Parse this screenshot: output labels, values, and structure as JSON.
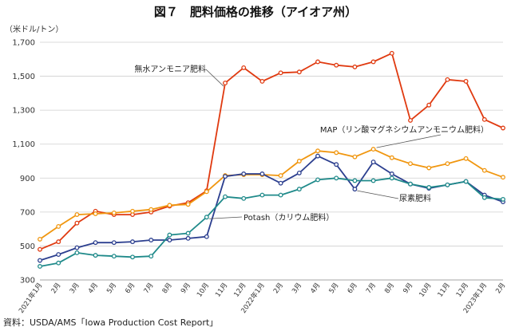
{
  "chart_data": {
    "type": "line",
    "title": "図７　肥料価格の推移（アイオア州）",
    "ylabel": "（米ドル/トン）",
    "ylim": [
      300,
      1700
    ],
    "yticks": [
      "300",
      "500",
      "700",
      "900",
      "1,100",
      "1,300",
      "1,500",
      "1,700"
    ],
    "ytick_values": [
      300,
      500,
      700,
      900,
      1100,
      1300,
      1500,
      1700
    ],
    "grid": true,
    "source": "資料：USDA/AMS「Iowa Production Cost Report」",
    "x": [
      "2021年1月",
      "2月",
      "3月",
      "4月",
      "5月",
      "6月",
      "7月",
      "8月",
      "9月",
      "10月",
      "11月",
      "12月",
      "2022年1月",
      "2月",
      "3月",
      "4月",
      "5月",
      "6月",
      "7月",
      "8月",
      "9月",
      "10月",
      "11月",
      "12月",
      "2023年1月",
      "2月"
    ],
    "series": [
      {
        "name": "無水アンモニア肥料",
        "color": "#e03a10",
        "values": [
          480,
          525,
          635,
          705,
          685,
          685,
          700,
          735,
          755,
          825,
          1460,
          1550,
          1470,
          1520,
          1525,
          1585,
          1565,
          1555,
          1585,
          1635,
          1240,
          1330,
          1480,
          1470,
          1245,
          1195
        ]
      },
      {
        "name": "MAP（リン酸マグネシウムアンモニウム肥料）",
        "color": "#f0960f",
        "values": [
          540,
          615,
          685,
          690,
          695,
          705,
          715,
          740,
          745,
          820,
          915,
          920,
          920,
          915,
          1000,
          1060,
          1050,
          1025,
          1070,
          1020,
          985,
          960,
          985,
          1015,
          945,
          905
        ]
      },
      {
        "name": "尿素肥料",
        "color": "#2c3f8f",
        "values": [
          415,
          450,
          490,
          520,
          520,
          525,
          535,
          535,
          545,
          555,
          910,
          925,
          925,
          870,
          930,
          1030,
          980,
          835,
          995,
          925,
          865,
          840,
          860,
          880,
          800,
          760
        ]
      },
      {
        "name": "Potash（カリウム肥料）",
        "color": "#1f8a8a",
        "values": [
          380,
          400,
          460,
          445,
          440,
          435,
          440,
          565,
          575,
          670,
          790,
          780,
          800,
          800,
          835,
          890,
          900,
          885,
          885,
          900,
          865,
          845,
          860,
          880,
          785,
          775
        ]
      }
    ],
    "annotations": [
      {
        "text": "無水アンモニア肥料",
        "series": 0
      },
      {
        "text": "MAP（リン酸マグネシウムアンモニウム肥料）",
        "series": 1
      },
      {
        "text": "尿素肥料",
        "series": 2
      },
      {
        "text": "Potash（カリウム肥料）",
        "series": 3
      }
    ]
  }
}
